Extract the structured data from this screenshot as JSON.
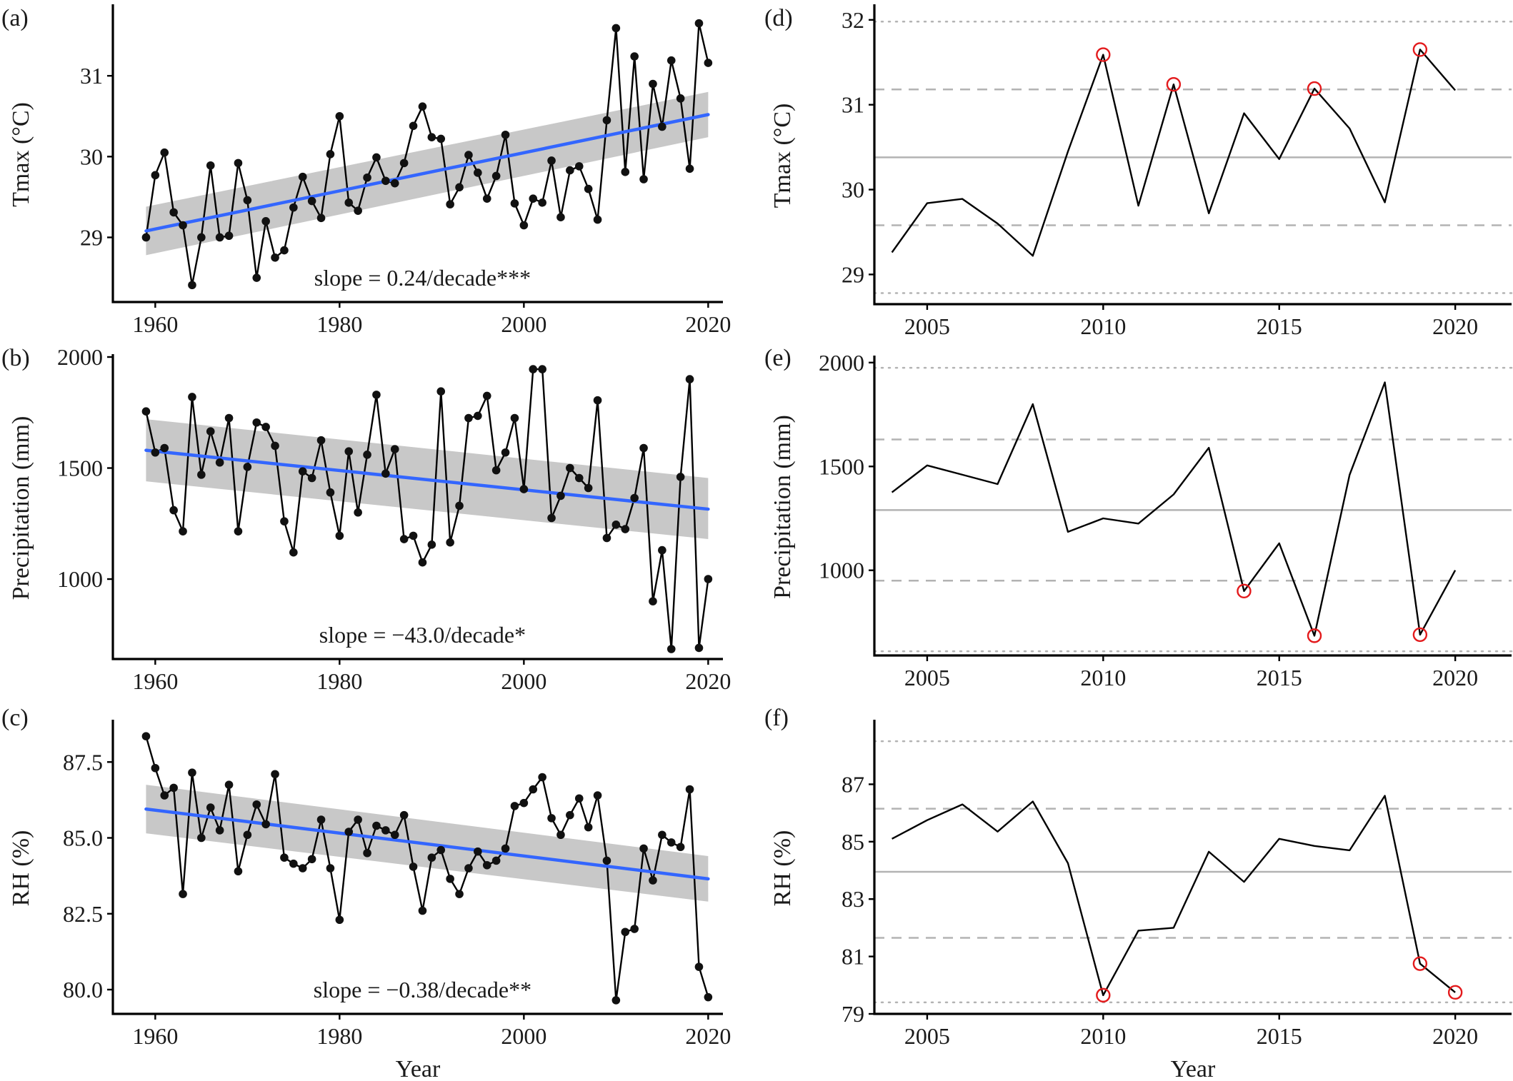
{
  "x_title": "Year",
  "colors": {
    "axis": "#000000",
    "series_line": "#000000",
    "points": "#111111",
    "trend_line": "#3366FF",
    "confidence_band": "#BEBEBE",
    "mean_line": "#B3B3B3",
    "sd_line": "#B3B3B3",
    "extreme_marker": "#E31A1C"
  },
  "chart_data": [
    {
      "panel": "(a)",
      "type": "line",
      "ylabel": "Tmax (°C)",
      "xlim": [
        1955.4,
        2021.6
      ],
      "ylim": [
        28.2,
        31.85
      ],
      "xticks": [
        1960,
        1980,
        2000,
        2020
      ],
      "yticks": [
        29,
        30,
        31
      ],
      "ytick_labels": [
        "29",
        "30",
        "31"
      ],
      "series": [
        {
          "x_start": 1959,
          "values": [
            29.0,
            29.77,
            30.05,
            29.31,
            29.15,
            28.41,
            29.0,
            29.89,
            29.0,
            29.02,
            29.92,
            29.46,
            28.5,
            29.2,
            28.75,
            28.84,
            29.37,
            29.75,
            29.45,
            29.24,
            30.03,
            30.5,
            29.43,
            29.33,
            29.74,
            29.99,
            29.7,
            29.67,
            29.92,
            30.38,
            30.62,
            30.24,
            30.22,
            29.41,
            29.62,
            30.02,
            29.8,
            29.48,
            29.76,
            30.27,
            29.42,
            29.15,
            29.48,
            29.43,
            29.95,
            29.25,
            29.83,
            29.88,
            29.6,
            29.22,
            30.45,
            31.59,
            29.81,
            31.24,
            29.72,
            30.9,
            30.37,
            31.19,
            30.72,
            29.85,
            31.65,
            31.16
          ]
        }
      ],
      "trend": {
        "x": [
          1959,
          2020
        ],
        "y": [
          29.08,
          30.52
        ],
        "ci_lower": [
          28.78,
          30.24
        ],
        "ci_upper": [
          29.38,
          30.8
        ]
      },
      "annotation": "slope = 0.24/decade***"
    },
    {
      "panel": "(b)",
      "type": "line",
      "ylabel": "Precipitation (mm)",
      "xlim": [
        1955.4,
        2021.6
      ],
      "ylim": [
        640,
        2000
      ],
      "xticks": [
        1960,
        1980,
        2000,
        2020
      ],
      "yticks": [
        1000,
        1500,
        2000
      ],
      "ytick_labels": [
        "1000",
        "1500",
        "2000"
      ],
      "series": [
        {
          "x_start": 1959,
          "values": [
            1755,
            1570,
            1590,
            1310,
            1215,
            1820,
            1470,
            1665,
            1525,
            1725,
            1215,
            1505,
            1705,
            1685,
            1600,
            1260,
            1120,
            1485,
            1455,
            1625,
            1390,
            1195,
            1575,
            1300,
            1560,
            1830,
            1475,
            1585,
            1180,
            1195,
            1075,
            1155,
            1845,
            1165,
            1330,
            1725,
            1735,
            1825,
            1490,
            1570,
            1725,
            1405,
            1945,
            1945,
            1275,
            1375,
            1500,
            1455,
            1410,
            1805,
            1185,
            1245,
            1225,
            1365,
            1590,
            900,
            1130,
            685,
            1460,
            1900,
            690,
            1000
          ]
        }
      ],
      "trend": {
        "x": [
          1959,
          2020
        ],
        "y": [
          1580,
          1315
        ],
        "ci_lower": [
          1440,
          1180
        ],
        "ci_upper": [
          1720,
          1455
        ]
      },
      "annotation": "slope = −43.0/decade*"
    },
    {
      "panel": "(c)",
      "type": "line",
      "ylabel": "RH (%)",
      "xlim": [
        1955.4,
        2021.6
      ],
      "ylim": [
        79.2,
        88.8
      ],
      "xticks": [
        1960,
        1980,
        2000,
        2020
      ],
      "yticks": [
        80.0,
        82.5,
        85.0,
        87.5
      ],
      "ytick_labels": [
        "80.0",
        "82.5",
        "85.0",
        "87.5"
      ],
      "series": [
        {
          "x_start": 1959,
          "values": [
            88.35,
            87.3,
            86.4,
            86.65,
            83.15,
            87.15,
            85.0,
            86.0,
            85.25,
            86.75,
            83.9,
            85.1,
            86.1,
            85.45,
            87.1,
            84.35,
            84.15,
            84.0,
            84.3,
            85.6,
            84.0,
            82.3,
            85.2,
            85.6,
            84.5,
            85.4,
            85.25,
            85.1,
            85.75,
            84.05,
            82.6,
            84.35,
            84.6,
            83.65,
            83.15,
            84.0,
            84.55,
            84.1,
            84.25,
            84.65,
            86.05,
            86.15,
            86.6,
            87.0,
            85.65,
            85.1,
            85.75,
            86.3,
            85.35,
            86.4,
            84.25,
            79.65,
            81.9,
            82.0,
            84.65,
            83.6,
            85.1,
            84.85,
            84.7,
            86.6,
            80.75,
            79.75
          ]
        }
      ],
      "trend": {
        "x": [
          1959,
          2020
        ],
        "y": [
          85.95,
          83.65
        ],
        "ci_lower": [
          85.15,
          82.9
        ],
        "ci_upper": [
          86.75,
          84.4
        ]
      },
      "annotation": "slope = −0.38/decade**"
    },
    {
      "panel": "(d)",
      "type": "line",
      "ylabel": "Tmax (°C)",
      "xlim": [
        2003.5,
        2021.6
      ],
      "ylim": [
        28.65,
        32.15
      ],
      "xticks": [
        2005,
        2010,
        2015,
        2020
      ],
      "yticks": [
        29,
        30,
        31,
        32
      ],
      "ytick_labels": [
        "29",
        "30",
        "31",
        "32"
      ],
      "series": [
        {
          "x": [
            2004,
            2005,
            2006,
            2007,
            2008,
            2009,
            2010,
            2011,
            2012,
            2013,
            2014,
            2015,
            2016,
            2017,
            2018,
            2019,
            2020
          ],
          "values": [
            29.26,
            29.84,
            29.89,
            29.6,
            29.22,
            30.45,
            31.59,
            29.81,
            31.24,
            29.72,
            30.9,
            30.36,
            31.19,
            30.72,
            29.85,
            31.65,
            31.17
          ]
        }
      ],
      "mean": 30.38,
      "sd_lines": [
        29.58,
        31.18
      ],
      "double_sd_lines": [
        28.78,
        31.98
      ],
      "highlight_years": [
        2010,
        2012,
        2016,
        2019
      ]
    },
    {
      "panel": "(e)",
      "type": "line",
      "ylabel": "Precipitation (mm)",
      "xlim": [
        2003.5,
        2021.6
      ],
      "ylim": [
        590,
        2020
      ],
      "xticks": [
        2005,
        2010,
        2015,
        2020
      ],
      "yticks": [
        1000,
        1500,
        2000
      ],
      "ytick_labels": [
        "1000",
        "1500",
        "2000"
      ],
      "series": [
        {
          "x": [
            2004,
            2005,
            2006,
            2007,
            2008,
            2009,
            2010,
            2011,
            2012,
            2013,
            2014,
            2015,
            2016,
            2017,
            2018,
            2019,
            2020
          ],
          "values": [
            1375,
            1505,
            1460,
            1415,
            1800,
            1185,
            1250,
            1225,
            1365,
            1590,
            900,
            1130,
            685,
            1460,
            1905,
            690,
            1000
          ]
        }
      ],
      "mean": 1290,
      "sd_lines": [
        950,
        1630
      ],
      "double_sd_lines": [
        610,
        1975
      ],
      "highlight_years": [
        2014,
        2016,
        2019
      ]
    },
    {
      "panel": "(f)",
      "type": "line",
      "ylabel": "RH (%)",
      "xlim": [
        2003.5,
        2021.6
      ],
      "ylim": [
        79.0,
        89.15
      ],
      "xticks": [
        2005,
        2010,
        2015,
        2020
      ],
      "yticks": [
        79,
        81,
        83,
        85,
        87
      ],
      "ytick_labels": [
        "79",
        "81",
        "83",
        "85",
        "87"
      ],
      "series": [
        {
          "x": [
            2004,
            2005,
            2006,
            2007,
            2008,
            2009,
            2010,
            2011,
            2012,
            2013,
            2014,
            2015,
            2016,
            2017,
            2018,
            2019,
            2020
          ],
          "values": [
            85.1,
            85.75,
            86.3,
            85.35,
            86.4,
            84.25,
            79.65,
            81.9,
            82.0,
            84.65,
            83.6,
            85.1,
            84.85,
            84.7,
            86.6,
            80.75,
            79.75
          ]
        }
      ],
      "mean": 83.95,
      "sd_lines": [
        81.65,
        86.15
      ],
      "double_sd_lines": [
        79.4,
        88.5
      ],
      "highlight_years": [
        2010,
        2019,
        2020
      ]
    }
  ]
}
